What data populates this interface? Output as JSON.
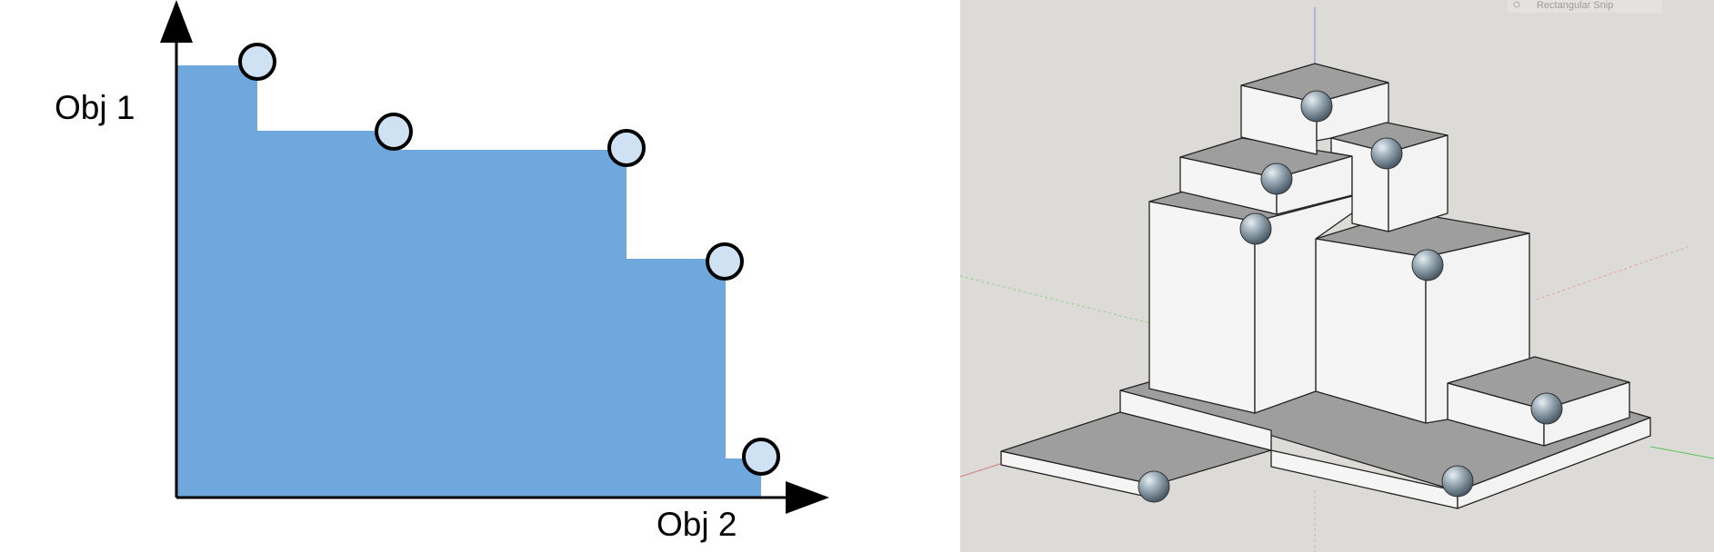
{
  "pareto_chart": {
    "y_axis_label": "Obj 1",
    "x_axis_label": "Obj 2",
    "points": [
      {
        "obj2": 0.14,
        "obj1": 1.0
      },
      {
        "obj2": 0.37,
        "obj1": 0.85
      },
      {
        "obj2": 0.77,
        "obj1": 0.81
      },
      {
        "obj2": 0.93,
        "obj1": 0.55
      },
      {
        "obj2": 0.99,
        "obj1": 0.09
      }
    ],
    "colors": {
      "fill": "#6fa8dc",
      "point_fill": "#cfe2f3",
      "stroke": "#000000"
    }
  },
  "sketchup_view": {
    "toolbar_text": "Rectangular Snip",
    "background": "#dcdbd7"
  }
}
